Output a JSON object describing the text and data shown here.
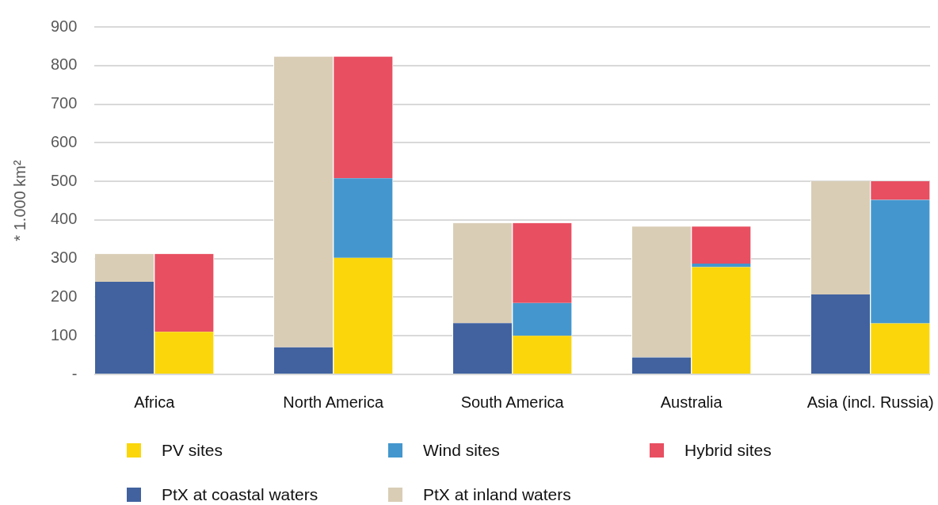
{
  "chart_data": {
    "type": "bar",
    "stacked": true,
    "ylabel": "* 1.000 km²",
    "categories": [
      "Africa",
      null,
      null,
      "North America",
      null,
      null,
      "South America",
      null,
      null,
      "Australia",
      null,
      null,
      "Asia (incl. Russia)",
      null
    ],
    "series": [
      {
        "name": "PV sites",
        "color": "#fad60b",
        "values": [
          null,
          110,
          null,
          null,
          302,
          null,
          null,
          100,
          null,
          null,
          278,
          null,
          null,
          132
        ]
      },
      {
        "name": "Wind sites",
        "color": "#4497ce",
        "values": [
          null,
          null,
          null,
          null,
          206,
          null,
          null,
          85,
          null,
          null,
          9,
          null,
          null,
          320
        ]
      },
      {
        "name": "Hybrid sites",
        "color": "#e84f61",
        "values": [
          null,
          202,
          null,
          null,
          315,
          null,
          null,
          207,
          null,
          null,
          96,
          null,
          null,
          48
        ]
      },
      {
        "name": "PtX at coastal waters",
        "color": "#41629f",
        "values": [
          240,
          null,
          null,
          70,
          null,
          null,
          133,
          null,
          null,
          44,
          null,
          null,
          207,
          null
        ]
      },
      {
        "name": "PtX at inland waters",
        "color": "#d9cdb6",
        "values": [
          72,
          null,
          null,
          753,
          null,
          null,
          259,
          null,
          null,
          339,
          null,
          null,
          293,
          null
        ]
      }
    ],
    "ylim": [
      0,
      900
    ],
    "yticks": [
      {
        "value": 0,
        "label": "-"
      },
      100,
      200,
      300,
      400,
      500,
      600,
      700,
      800,
      900
    ],
    "grid": "y",
    "legend": "bottom"
  }
}
